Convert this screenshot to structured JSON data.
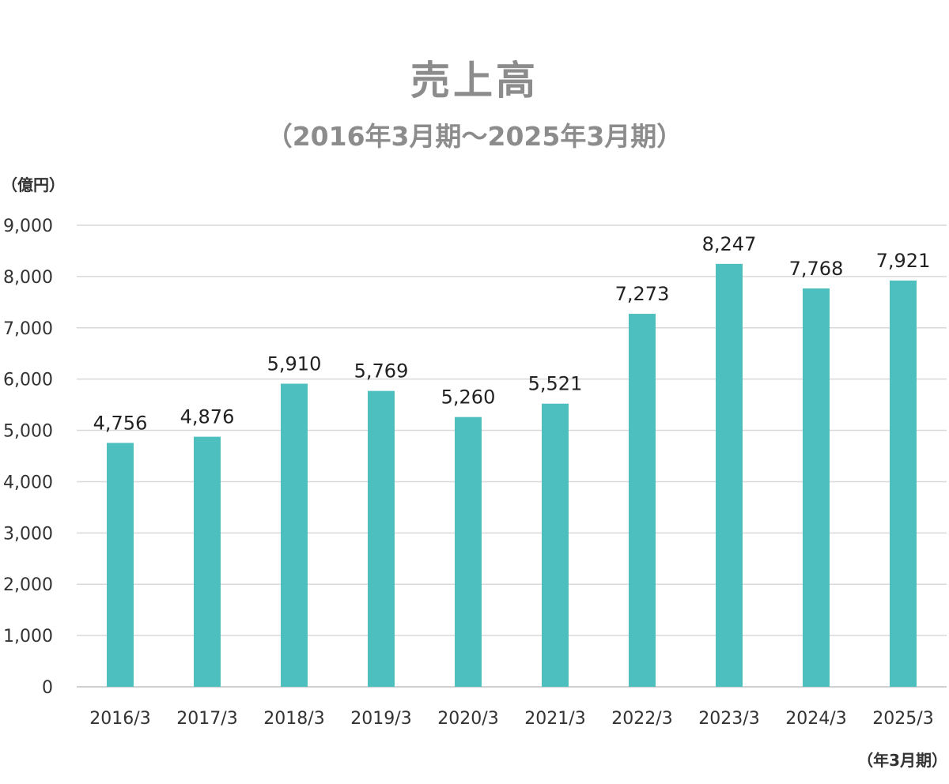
{
  "chart_data": {
    "type": "bar",
    "title": "売上高",
    "subtitle": "（2016年3月期～2025年3月期）",
    "ylabel": "（億円）",
    "xlabel": "（年3月期）",
    "categories": [
      "2016/3",
      "2017/3",
      "2018/3",
      "2019/3",
      "2020/3",
      "2021/3",
      "2022/3",
      "2023/3",
      "2024/3",
      "2025/3"
    ],
    "values": [
      4756,
      4876,
      5910,
      5769,
      5260,
      5521,
      7273,
      8247,
      7768,
      7921
    ],
    "value_labels": [
      "4,756",
      "4,876",
      "5,910",
      "5,769",
      "5,260",
      "5,521",
      "7,273",
      "8,247",
      "7,768",
      "7,921"
    ],
    "ylim": [
      0,
      9000
    ],
    "yticks": [
      0,
      1000,
      2000,
      3000,
      4000,
      5000,
      6000,
      7000,
      8000,
      9000
    ],
    "ytick_labels": [
      "0",
      "1,000",
      "2,000",
      "3,000",
      "4,000",
      "5,000",
      "6,000",
      "7,000",
      "8,000",
      "9,000"
    ],
    "grid": true,
    "bar_color": "#4dbfbf",
    "grid_color": "#d9d9d9"
  }
}
